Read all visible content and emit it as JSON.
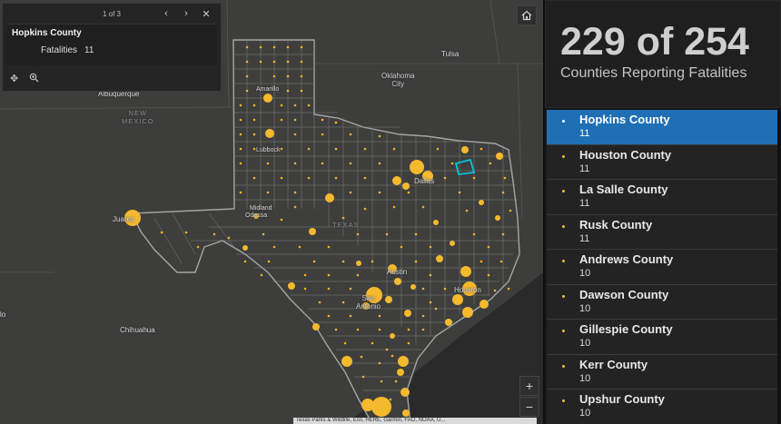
{
  "popup": {
    "pager": "1 of 3",
    "title": "Hopkins County",
    "field_label": "Fatalities",
    "field_value": "11",
    "icons": [
      "previous-icon",
      "next-icon",
      "close-icon",
      "pan-icon",
      "zoom-to-icon"
    ]
  },
  "map": {
    "labels": {
      "tulsa": "Tulsa",
      "oklahoma_city": "Oklahoma\nCity",
      "albuquerque": "Albuquerque",
      "new_mexico": "NEW\nMEXICO",
      "amarillo": "Amarillo",
      "lubbock": "Lubbock",
      "dallas": "Dallas",
      "juarez": "Juarez",
      "midland": "Midland",
      "odessa": "Odessa",
      "texas": "TEXAS",
      "austin": "Austin",
      "houston": "Houston",
      "san_antonio": "San\nAntonio",
      "chihuahua": "Chihuahua",
      "lo": "lo"
    },
    "attribution": "Texas Parks & Wildlife, Esri, HERE, Garmin, FAO, NOAA, U..."
  },
  "controls": {
    "home": "home-icon",
    "zoom_in": "+",
    "zoom_out": "−"
  },
  "panel": {
    "stat_number": "229 of 254",
    "stat_caption": "Counties Reporting Fatalities",
    "items": [
      {
        "name": "Hopkins County",
        "value": "11",
        "selected": true
      },
      {
        "name": "Houston County",
        "value": "11"
      },
      {
        "name": "La Salle County",
        "value": "11"
      },
      {
        "name": "Rusk County",
        "value": "11"
      },
      {
        "name": "Andrews County",
        "value": "10"
      },
      {
        "name": "Dawson County",
        "value": "10"
      },
      {
        "name": "Gillespie County",
        "value": "10"
      },
      {
        "name": "Kerr County",
        "value": "10"
      },
      {
        "name": "Upshur County",
        "value": "10"
      }
    ]
  },
  "colors": {
    "accent": "#1f6fb5",
    "marker": "#f5b92e",
    "highlight": "#00c5d9"
  }
}
